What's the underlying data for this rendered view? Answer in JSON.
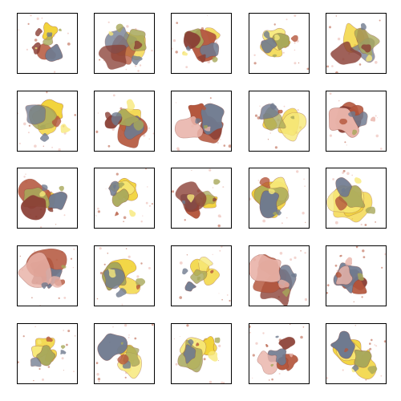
{
  "grid": {
    "rows": 5,
    "cols": 5,
    "tiles": [
      {
        "palette": "mixed",
        "coverage": "low"
      },
      {
        "palette": "mixed",
        "coverage": "medium"
      },
      {
        "palette": "mixed",
        "coverage": "medium"
      },
      {
        "palette": "yellow",
        "coverage": "medium"
      },
      {
        "palette": "mixed",
        "coverage": "medium"
      },
      {
        "palette": "yellow",
        "coverage": "high"
      },
      {
        "palette": "mixed",
        "coverage": "high"
      },
      {
        "palette": "red",
        "coverage": "medium"
      },
      {
        "palette": "yellow",
        "coverage": "medium"
      },
      {
        "palette": "red",
        "coverage": "medium"
      },
      {
        "palette": "mixed",
        "coverage": "medium"
      },
      {
        "palette": "yellow",
        "coverage": "low"
      },
      {
        "palette": "mixed",
        "coverage": "medium"
      },
      {
        "palette": "yellow",
        "coverage": "high"
      },
      {
        "palette": "yellow",
        "coverage": "high"
      },
      {
        "palette": "red",
        "coverage": "high"
      },
      {
        "palette": "yellow",
        "coverage": "medium"
      },
      {
        "palette": "yellow",
        "coverage": "low"
      },
      {
        "palette": "red",
        "coverage": "high"
      },
      {
        "palette": "red",
        "coverage": "medium"
      },
      {
        "palette": "yellow",
        "coverage": "low"
      },
      {
        "palette": "yellow",
        "coverage": "medium"
      },
      {
        "palette": "yellow",
        "coverage": "medium"
      },
      {
        "palette": "red",
        "coverage": "low"
      },
      {
        "palette": "yellow",
        "coverage": "medium"
      }
    ]
  },
  "colors": {
    "yellow": "#f2d43a",
    "yellow_light": "#f7e97a",
    "red": "#b4563c",
    "red_dark": "#8a3f35",
    "blue": "#6f7a8f",
    "olive": "#a8a85a",
    "pink": "#e9b3a9",
    "frame": "#000000",
    "background": "#ffffff"
  }
}
